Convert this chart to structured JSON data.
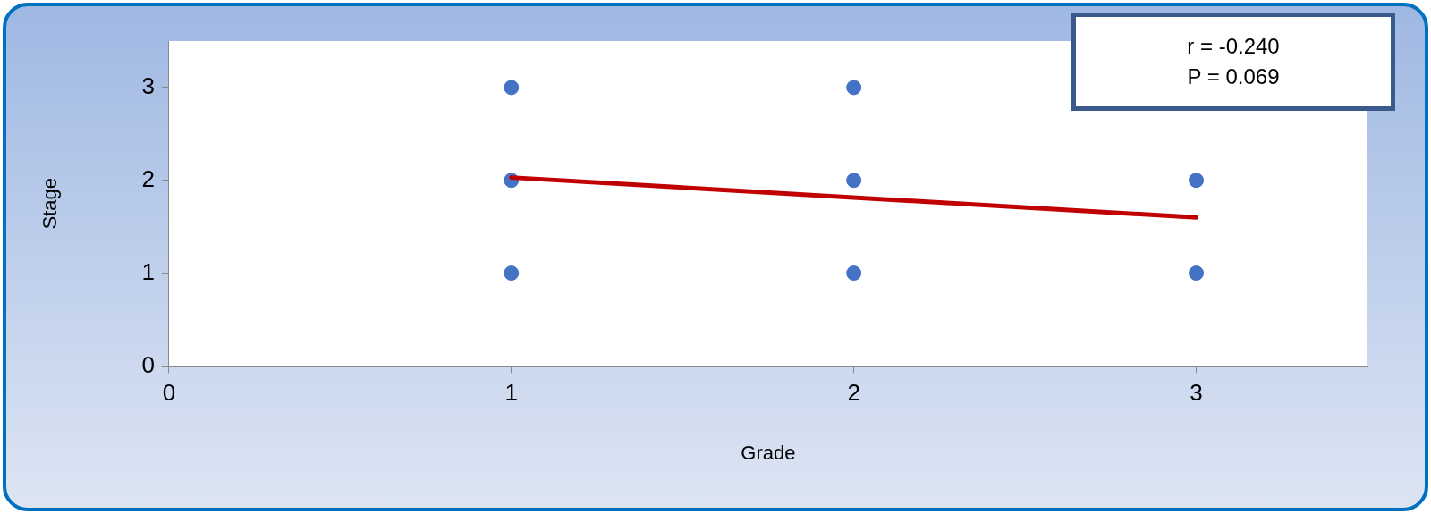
{
  "chart_data": {
    "type": "scatter",
    "xlabel": "Grade",
    "ylabel": "Stage",
    "series": [
      {
        "type": "scatter",
        "color": "#4472c4",
        "x": [
          1,
          1,
          1,
          2,
          2,
          2,
          3,
          3
        ],
        "values": [
          3,
          2,
          1,
          3,
          2,
          1,
          2,
          1
        ],
        "marker": "circle"
      },
      {
        "type": "line",
        "color": "#c00000",
        "x": [
          1,
          3
        ],
        "values": [
          2.03,
          1.6
        ],
        "marker": "none",
        "line_style": "solid"
      }
    ],
    "xlim": [
      0,
      3.5
    ],
    "xticks": [
      0,
      1,
      2,
      3
    ],
    "ylim": [
      0,
      3.5
    ],
    "yticks": [
      0,
      1,
      2,
      3
    ],
    "grid": false,
    "legend": false,
    "annotations": [
      "r = -0.240",
      "P = 0.069"
    ]
  }
}
